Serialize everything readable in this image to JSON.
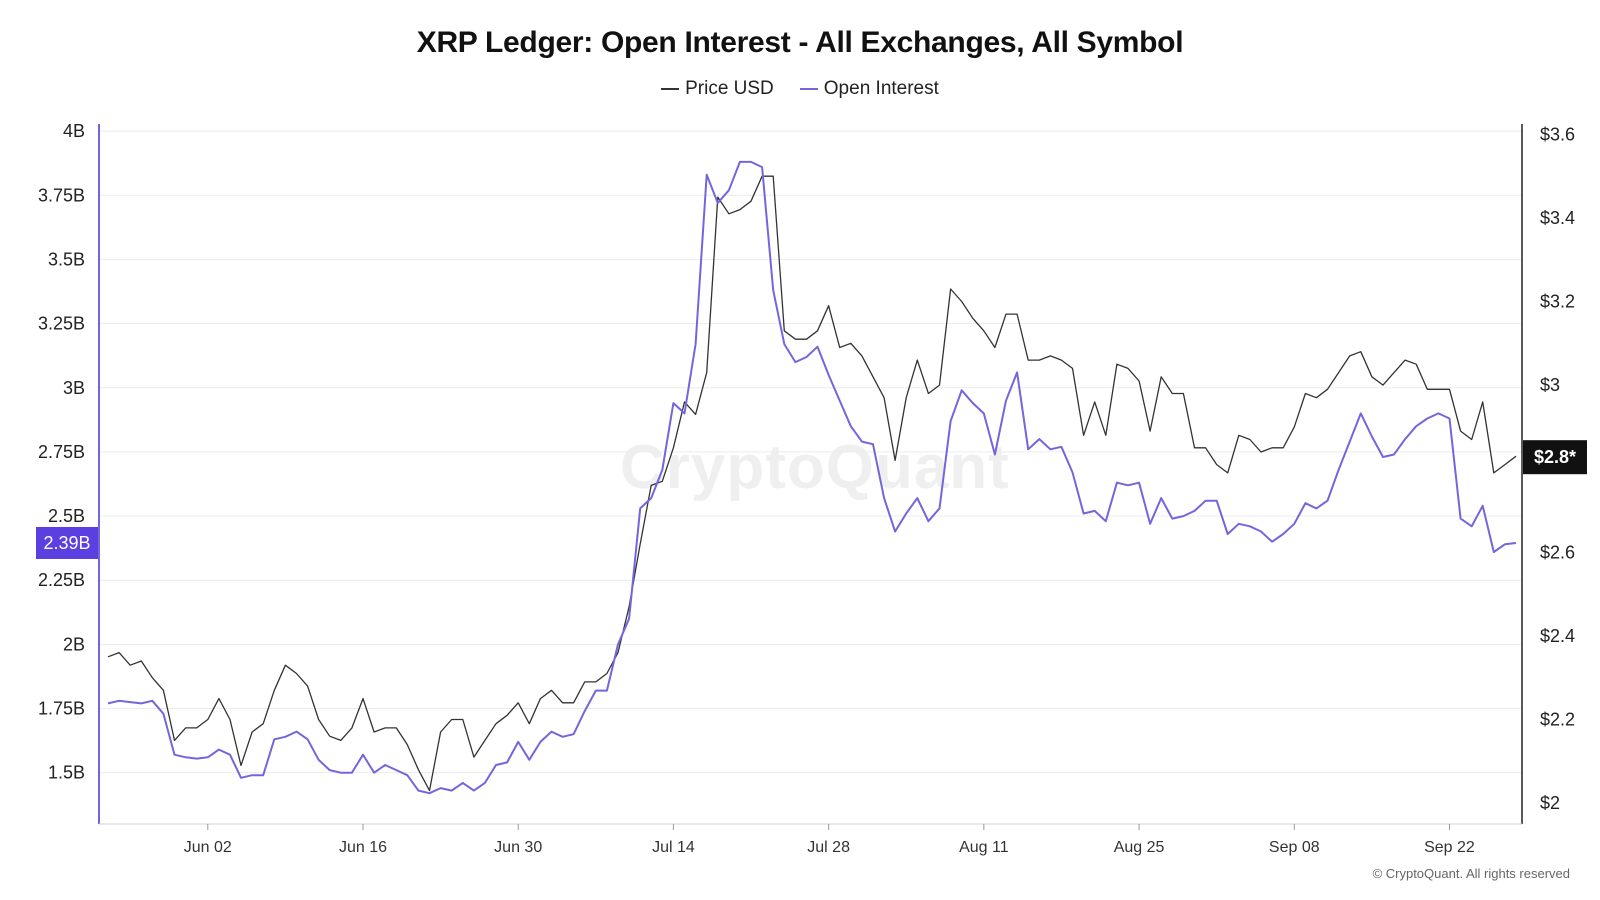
{
  "chart_data": {
    "type": "line",
    "title": "XRP Ledger: Open Interest - All Exchanges, All Symbol",
    "legend": [
      {
        "name": "Price USD",
        "color": "#333333"
      },
      {
        "name": "Open Interest",
        "color": "#7366dd"
      }
    ],
    "x_ticks": [
      "Jun 02",
      "Jun 16",
      "Jun 30",
      "Jul 14",
      "Jul 28",
      "Aug 11",
      "Aug 25",
      "Sep 08",
      "Sep 22"
    ],
    "x_tick_index": [
      9,
      23,
      37,
      51,
      65,
      79,
      93,
      107,
      121
    ],
    "y_left_ticks": [
      "4B",
      "3.75B",
      "3.5B",
      "3.25B",
      "3B",
      "2.75B",
      "2.5B",
      "2.25B",
      "2B",
      "1.75B",
      "1.5B"
    ],
    "y_left_values": [
      4,
      3.75,
      3.5,
      3.25,
      3,
      2.75,
      2.5,
      2.25,
      2,
      1.75,
      1.5
    ],
    "y_left_unit": "B",
    "y_left_range": [
      1.3,
      4.02
    ],
    "y_right_ticks": [
      "$3.6",
      "$3.4",
      "$3.2",
      "$3",
      "$2.6",
      "$2.4",
      "$2.2",
      "$2"
    ],
    "y_right_values": [
      3.6,
      3.4,
      3.2,
      3.0,
      2.6,
      2.4,
      2.2,
      2.0
    ],
    "y_right_range": [
      1.95,
      3.62
    ],
    "current_open_interest_label": "2.39B",
    "current_price_label": "$2.8*",
    "watermark": "CryptoQuant",
    "copyright": "© CryptoQuant. All rights reserved",
    "grid": "horizontal",
    "legend_position": "top-center",
    "series": [
      {
        "name": "Price USD",
        "axis": "right",
        "color": "#333333",
        "values": [
          2.35,
          2.36,
          2.33,
          2.34,
          2.3,
          2.27,
          2.15,
          2.18,
          2.18,
          2.2,
          2.25,
          2.2,
          2.09,
          2.17,
          2.19,
          2.27,
          2.33,
          2.31,
          2.28,
          2.2,
          2.16,
          2.15,
          2.18,
          2.25,
          2.17,
          2.18,
          2.18,
          2.14,
          2.08,
          2.03,
          2.17,
          2.2,
          2.2,
          2.11,
          2.15,
          2.19,
          2.21,
          2.24,
          2.19,
          2.25,
          2.27,
          2.24,
          2.24,
          2.29,
          2.29,
          2.31,
          2.36,
          2.47,
          2.62,
          2.76,
          2.77,
          2.85,
          2.96,
          2.93,
          3.03,
          3.45,
          3.41,
          3.42,
          3.44,
          3.5,
          3.5,
          3.13,
          3.11,
          3.11,
          3.13,
          3.19,
          3.09,
          3.1,
          3.07,
          3.02,
          2.97,
          2.82,
          2.97,
          3.06,
          2.98,
          3.0,
          3.23,
          3.2,
          3.16,
          3.13,
          3.09,
          3.17,
          3.17,
          3.06,
          3.06,
          3.07,
          3.06,
          3.04,
          2.88,
          2.96,
          2.88,
          3.05,
          3.04,
          3.01,
          2.89,
          3.02,
          2.98,
          2.98,
          2.85,
          2.85,
          2.81,
          2.79,
          2.88,
          2.87,
          2.84,
          2.85,
          2.85,
          2.9,
          2.98,
          2.97,
          2.99,
          3.03,
          3.07,
          3.08,
          3.02,
          3.0,
          3.03,
          3.06,
          3.05,
          2.99,
          2.99,
          2.99,
          2.89,
          2.87,
          2.96,
          2.79,
          2.81,
          2.83
        ]
      },
      {
        "name": "Open Interest",
        "axis": "left",
        "color": "#7366dd",
        "values": [
          1.77,
          1.78,
          1.775,
          1.77,
          1.78,
          1.73,
          1.57,
          1.56,
          1.555,
          1.56,
          1.59,
          1.57,
          1.48,
          1.49,
          1.49,
          1.63,
          1.64,
          1.66,
          1.63,
          1.55,
          1.51,
          1.5,
          1.5,
          1.57,
          1.5,
          1.53,
          1.51,
          1.49,
          1.43,
          1.42,
          1.44,
          1.43,
          1.46,
          1.43,
          1.46,
          1.53,
          1.54,
          1.62,
          1.55,
          1.62,
          1.66,
          1.64,
          1.65,
          1.74,
          1.82,
          1.82,
          2.0,
          2.1,
          2.53,
          2.57,
          2.68,
          2.94,
          2.9,
          3.17,
          3.83,
          3.72,
          3.77,
          3.88,
          3.88,
          3.86,
          3.38,
          3.17,
          3.1,
          3.12,
          3.16,
          3.05,
          2.95,
          2.85,
          2.79,
          2.78,
          2.57,
          2.44,
          2.51,
          2.57,
          2.48,
          2.53,
          2.87,
          2.99,
          2.94,
          2.9,
          2.74,
          2.95,
          3.06,
          2.76,
          2.8,
          2.76,
          2.77,
          2.67,
          2.51,
          2.52,
          2.48,
          2.63,
          2.62,
          2.63,
          2.47,
          2.57,
          2.49,
          2.5,
          2.52,
          2.56,
          2.56,
          2.43,
          2.47,
          2.46,
          2.44,
          2.4,
          2.43,
          2.47,
          2.55,
          2.53,
          2.56,
          2.68,
          2.79,
          2.9,
          2.81,
          2.73,
          2.74,
          2.8,
          2.85,
          2.88,
          2.9,
          2.88,
          2.49,
          2.46,
          2.54,
          2.36,
          2.39,
          2.395
        ]
      }
    ]
  }
}
